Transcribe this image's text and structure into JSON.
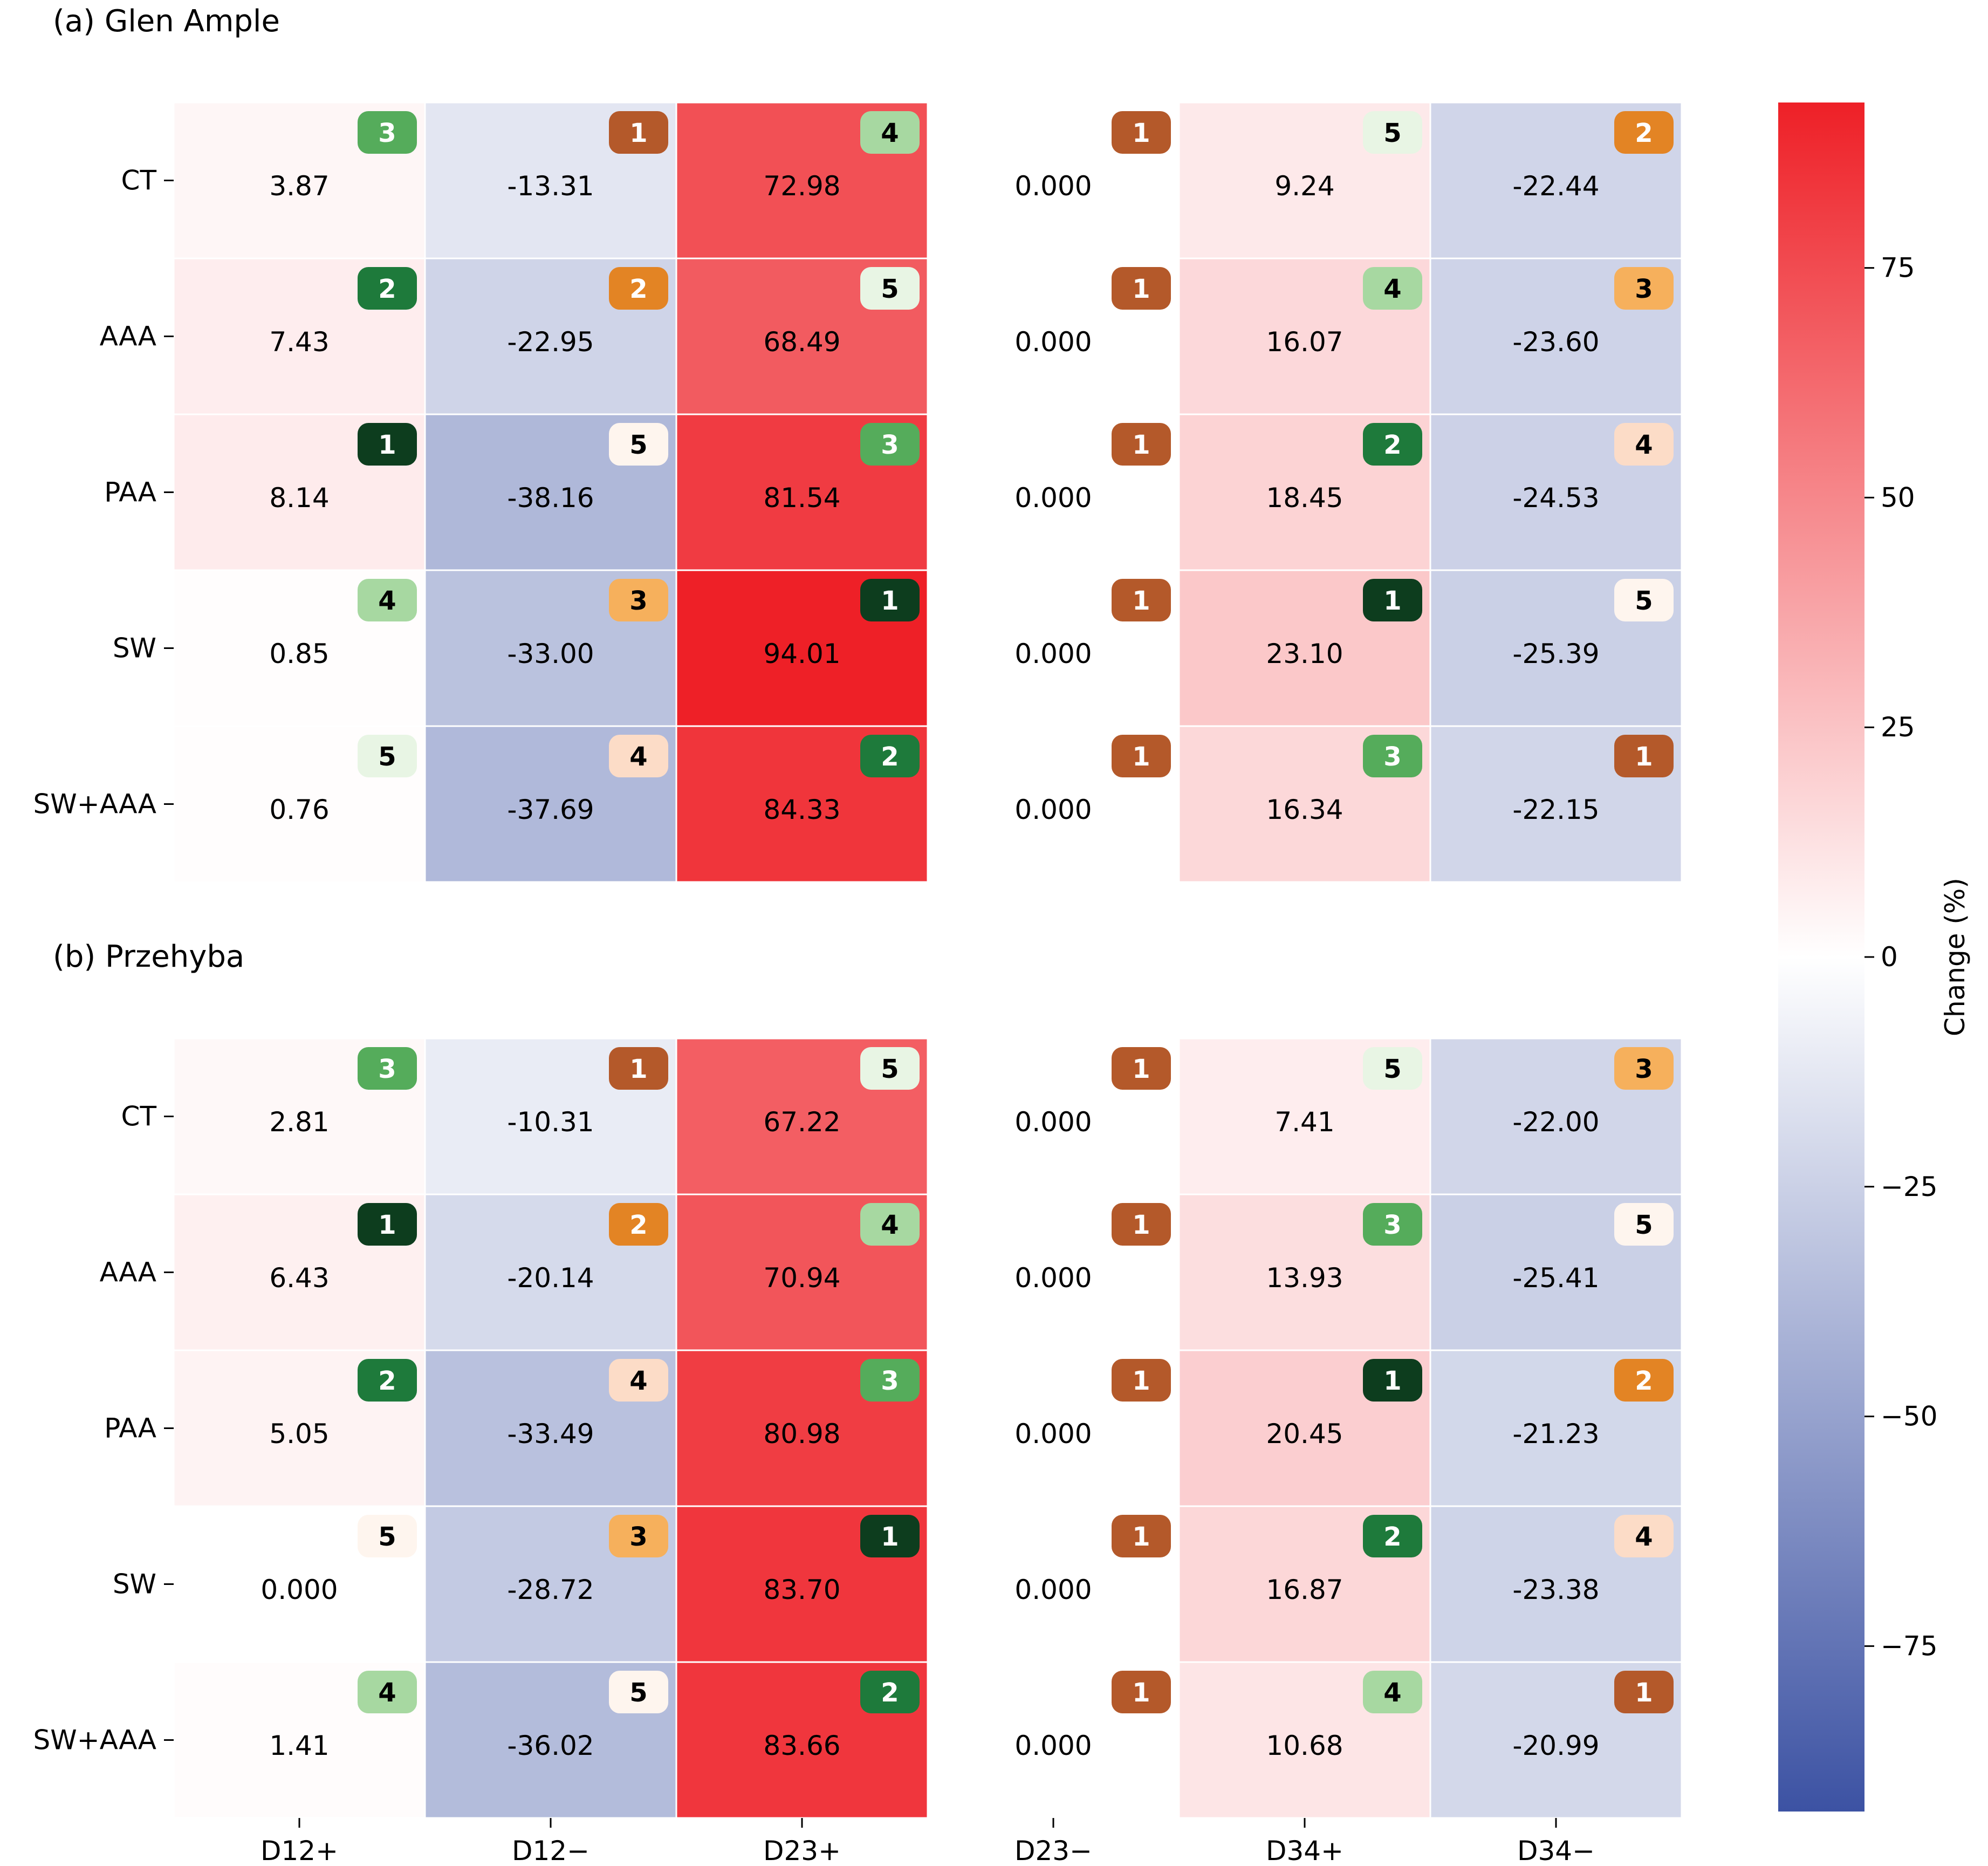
{
  "chart_data": {
    "type": "heatmap",
    "columns": [
      "D12+",
      "D12−",
      "D23+",
      "D23−",
      "D34+",
      "D34−"
    ],
    "rows": [
      "CT",
      "AAA",
      "PAA",
      "SW",
      "SW+AAA"
    ],
    "colorbar": {
      "label": "Change (%)",
      "range": [
        -93,
        93
      ],
      "ticks": [
        75,
        50,
        25,
        0,
        -25,
        -50,
        -75
      ],
      "tick_labels": [
        "75",
        "50",
        "25",
        "0",
        "−25",
        "−50",
        "−75"
      ]
    },
    "colors": {
      "positive": "#ee2027",
      "negative": "#3c52a3",
      "zero": "#ffffff",
      "rank_green": [
        "#0d3d1e",
        "#1e7a3b",
        "#55ac5b",
        "#a7d8a1",
        "#e8f5e4"
      ],
      "rank_orange": [
        "#b4592a",
        "#e38424",
        "#f6b05c",
        "#fcdcc7",
        "#fef5ee"
      ]
    },
    "panels": [
      {
        "title": "(a) Glen Ample",
        "values": [
          [
            3.87,
            -13.31,
            72.98,
            0.0,
            9.24,
            -22.44
          ],
          [
            7.43,
            -22.95,
            68.49,
            0.0,
            16.07,
            -23.6
          ],
          [
            8.14,
            -38.16,
            81.54,
            0.0,
            18.45,
            -24.53
          ],
          [
            0.85,
            -33.0,
            94.01,
            0.0,
            23.1,
            -25.39
          ],
          [
            0.76,
            -37.69,
            84.33,
            0.0,
            16.34,
            -22.15
          ]
        ],
        "labels": [
          [
            "3.87",
            "-13.31",
            "72.98",
            "0.000",
            "9.24",
            "-22.44"
          ],
          [
            "7.43",
            "-22.95",
            "68.49",
            "0.000",
            "16.07",
            "-23.60"
          ],
          [
            "8.14",
            "-38.16",
            "81.54",
            "0.000",
            "18.45",
            "-24.53"
          ],
          [
            "0.85",
            "-33.00",
            "94.01",
            "0.000",
            "23.10",
            "-25.39"
          ],
          [
            "0.76",
            "-37.69",
            "84.33",
            "0.000",
            "16.34",
            "-22.15"
          ]
        ],
        "ranks": [
          [
            "3",
            "1",
            "4",
            "1",
            "5",
            "2"
          ],
          [
            "2",
            "2",
            "5",
            "1",
            "4",
            "3"
          ],
          [
            "1",
            "5",
            "3",
            "1",
            "2",
            "4"
          ],
          [
            "4",
            "3",
            "1",
            "1",
            "1",
            "5"
          ],
          [
            "5",
            "4",
            "2",
            "1",
            "3",
            "1"
          ]
        ]
      },
      {
        "title": "(b) Przehyba",
        "values": [
          [
            2.81,
            -10.31,
            67.22,
            0.0,
            7.41,
            -22.0
          ],
          [
            6.43,
            -20.14,
            70.94,
            0.0,
            13.93,
            -25.41
          ],
          [
            5.05,
            -33.49,
            80.98,
            0.0,
            20.45,
            -21.23
          ],
          [
            0.0,
            -28.72,
            83.7,
            0.0,
            16.87,
            -23.38
          ],
          [
            1.41,
            -36.02,
            83.66,
            0.0,
            10.68,
            -20.99
          ]
        ],
        "labels": [
          [
            "2.81",
            "-10.31",
            "67.22",
            "0.000",
            "7.41",
            "-22.00"
          ],
          [
            "6.43",
            "-20.14",
            "70.94",
            "0.000",
            "13.93",
            "-25.41"
          ],
          [
            "5.05",
            "-33.49",
            "80.98",
            "0.000",
            "20.45",
            "-21.23"
          ],
          [
            "0.000",
            "-28.72",
            "83.70",
            "0.000",
            "16.87",
            "-23.38"
          ],
          [
            "1.41",
            "-36.02",
            "83.66",
            "0.000",
            "10.68",
            "-20.99"
          ]
        ],
        "ranks": [
          [
            "3",
            "1",
            "5",
            "1",
            "5",
            "3"
          ],
          [
            "1",
            "2",
            "4",
            "1",
            "3",
            "5"
          ],
          [
            "2",
            "4",
            "3",
            "1",
            "1",
            "2"
          ],
          [
            "5",
            "3",
            "1",
            "1",
            "2",
            "4"
          ],
          [
            "4",
            "5",
            "2",
            "1",
            "4",
            "1"
          ]
        ]
      }
    ]
  }
}
